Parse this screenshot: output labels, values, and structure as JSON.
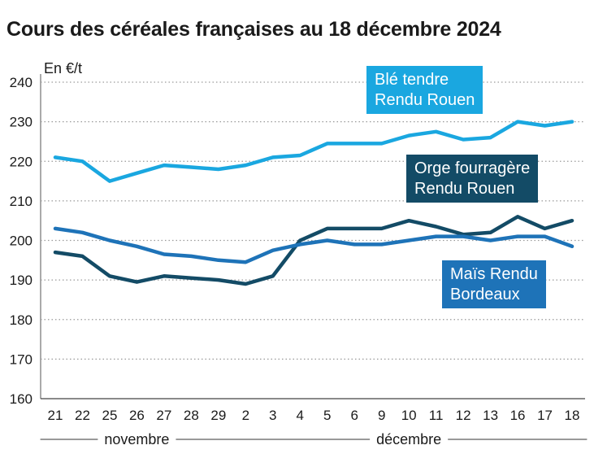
{
  "chart_data": {
    "type": "line",
    "title": "Cours des céréales françaises au 18 décembre 2024",
    "ylabel": "En €/t",
    "ylim": [
      160,
      240
    ],
    "yticks": [
      160,
      170,
      180,
      190,
      200,
      210,
      220,
      230,
      240
    ],
    "grid": "horizontal dotted",
    "categories": [
      "21",
      "22",
      "25",
      "26",
      "27",
      "28",
      "29",
      "2",
      "3",
      "4",
      "5",
      "6",
      "9",
      "10",
      "11",
      "12",
      "13",
      "16",
      "17",
      "18"
    ],
    "months": [
      {
        "label": "novembre",
        "from": 0,
        "to": 6
      },
      {
        "label": "décembre",
        "from": 7,
        "to": 19
      }
    ],
    "series": [
      {
        "name": "Blé tendre Rendu Rouen",
        "legend_lines": [
          "Blé tendre",
          "Rendu Rouen"
        ],
        "color": "#1aa7e0",
        "values": [
          221,
          220,
          215,
          217,
          219,
          218.5,
          218,
          219,
          221,
          221.5,
          224.5,
          224.5,
          224.5,
          226.5,
          227.5,
          225.5,
          226,
          230,
          229,
          230
        ]
      },
      {
        "name": "Orge fourragère Rendu Rouen",
        "legend_lines": [
          "Orge fourragère",
          "Rendu Rouen"
        ],
        "color": "#134b66",
        "values": [
          197,
          196,
          191,
          189.5,
          191,
          190.5,
          190,
          189,
          191,
          200,
          203,
          203,
          203,
          205,
          203.5,
          201.5,
          202,
          206,
          203,
          205
        ]
      },
      {
        "name": "Maïs Rendu Bordeaux",
        "legend_lines": [
          "Maïs Rendu",
          "Bordeaux"
        ],
        "color": "#1e73b8",
        "values": [
          203,
          202,
          200,
          198.5,
          196.5,
          196,
          195,
          194.5,
          197.5,
          199,
          200,
          199,
          199,
          200,
          201,
          201,
          200,
          201,
          201,
          198.5
        ]
      }
    ]
  }
}
